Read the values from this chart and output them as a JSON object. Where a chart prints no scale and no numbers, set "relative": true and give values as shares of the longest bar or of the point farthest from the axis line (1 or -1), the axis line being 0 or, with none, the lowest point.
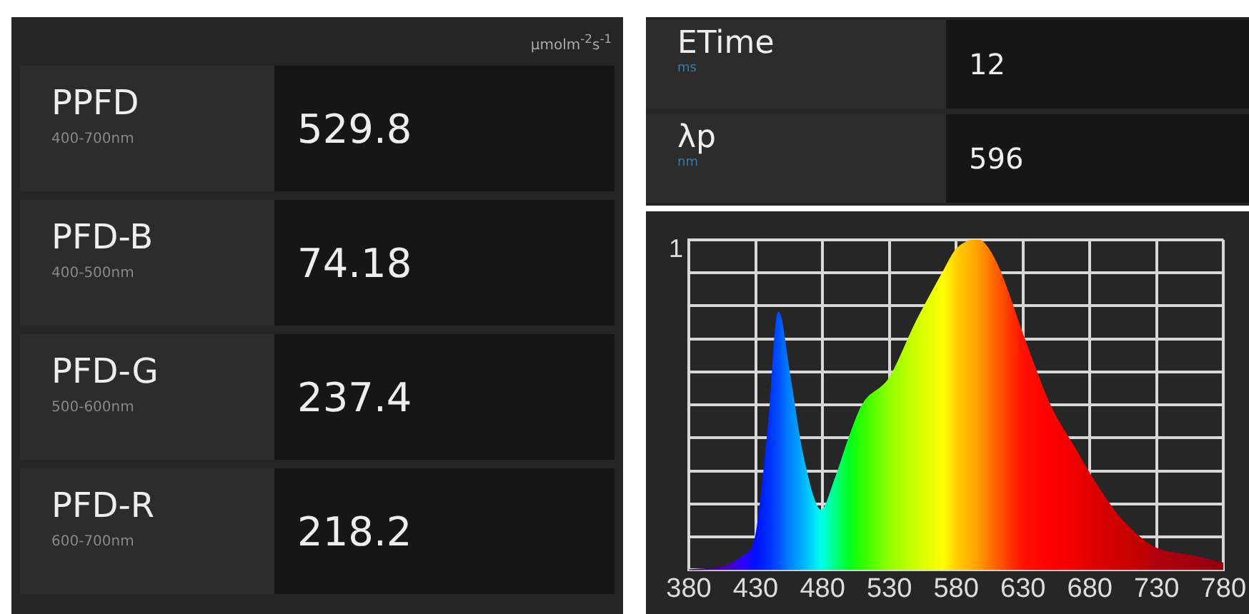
{
  "chart_data": [
    {
      "type": "other",
      "title": "μmolm$^{-2}$s$^{-1}$",
      "categories": [
        "PPFD",
        "PFD-B",
        "PFD-G",
        "PFD-R"
      ],
      "values": [
        529.8,
        74.18,
        237.4,
        218.2
      ],
      "annotations": [
        "400-700nm",
        "400-500nm",
        "500-600nm",
        "600-700nm"
      ],
      "data_labels": true
    },
    {
      "type": "other",
      "categories": [
        "ETime",
        "λp"
      ],
      "values": [
        12,
        596
      ],
      "annotations": [
        "ms",
        "nm"
      ],
      "data_labels": true
    },
    {
      "type": "area",
      "relative": true,
      "grid": true,
      "annotations": [
        "1"
      ],
      "xlim": [
        380,
        780
      ],
      "xticks": [
        380,
        430,
        480,
        530,
        580,
        630,
        680,
        730,
        780
      ],
      "x": [
        380,
        405,
        420,
        430,
        440,
        447,
        455,
        465,
        479,
        490,
        500,
        510,
        530,
        550,
        570,
        580,
        596,
        610,
        630,
        650,
        670,
        680,
        700,
        720,
        730,
        760,
        780
      ],
      "values": [
        0,
        0.01,
        0.04,
        0.1,
        0.45,
        0.78,
        0.6,
        0.35,
        0.18,
        0.28,
        0.4,
        0.5,
        0.58,
        0.75,
        0.9,
        0.97,
        1,
        0.93,
        0.71,
        0.5,
        0.36,
        0.29,
        0.17,
        0.09,
        0.065,
        0.04,
        0.02
      ],
      "colors": [
        "#3a0060",
        "#4a00a0",
        "#3000ff",
        "#0010ff",
        "#0030ff",
        "#0050ff",
        "#0080ff",
        "#00b0ff",
        "#00ffee",
        "#00ff80",
        "#00ff20",
        "#30ff00",
        "#90ff00",
        "#d0ff00",
        "#ffff00",
        "#ffd000",
        "#ffa000",
        "#ff6000",
        "#ff1000",
        "#ff0000",
        "#f00000",
        "#e00000",
        "#d00000",
        "#c00000",
        "#b00010",
        "#a00010",
        "#900010"
      ]
    }
  ]
}
